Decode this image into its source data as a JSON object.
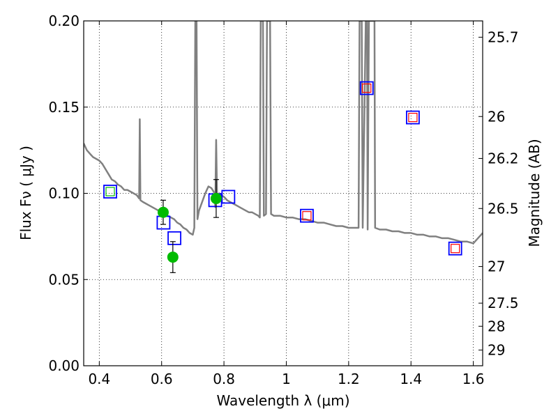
{
  "chart_data": {
    "type": "scatter",
    "xlabel": "Wavelength  λ (μm)",
    "ylabel": "Flux  Fν  ( μJy )",
    "ylabel_right": "Magnitude (AB)",
    "xlim": [
      0.35,
      1.63
    ],
    "ylim": [
      0.0,
      0.2
    ],
    "grid": true,
    "x_ticks": [
      "0.4",
      "0.6",
      "0.8",
      "1",
      "1.2",
      "1.4",
      "1.6"
    ],
    "x_tick_values": [
      0.4,
      0.6,
      0.8,
      1.0,
      1.2,
      1.4,
      1.6
    ],
    "y_ticks": [
      "0.00",
      "0.05",
      "0.10",
      "0.15",
      "0.20"
    ],
    "y_tick_values": [
      0.0,
      0.05,
      0.1,
      0.15,
      0.2
    ],
    "mag_ticks": [
      "25.7",
      "26",
      "26.2",
      "26.5",
      "27",
      "27.5",
      "28",
      "29"
    ],
    "mag_tick_values": [
      25.7,
      26.0,
      26.2,
      26.5,
      27.0,
      27.5,
      28.0,
      29.0
    ],
    "series": [
      {
        "kind": "model",
        "color": "#808080",
        "points": [
          [
            0.35,
            0.129
          ],
          [
            0.355,
            0.127
          ],
          [
            0.36,
            0.125
          ],
          [
            0.365,
            0.124
          ],
          [
            0.37,
            0.123
          ],
          [
            0.375,
            0.122
          ],
          [
            0.38,
            0.121
          ],
          [
            0.39,
            0.12
          ],
          [
            0.4,
            0.119
          ],
          [
            0.41,
            0.117
          ],
          [
            0.42,
            0.114
          ],
          [
            0.43,
            0.111
          ],
          [
            0.44,
            0.108
          ],
          [
            0.45,
            0.107
          ],
          [
            0.46,
            0.105
          ],
          [
            0.47,
            0.104
          ],
          [
            0.48,
            0.102
          ],
          [
            0.49,
            0.102
          ],
          [
            0.5,
            0.101
          ],
          [
            0.51,
            0.1
          ],
          [
            0.52,
            0.099
          ],
          [
            0.528,
            0.097
          ],
          [
            0.53,
            0.143
          ],
          [
            0.532,
            0.096
          ],
          [
            0.54,
            0.095
          ],
          [
            0.55,
            0.094
          ],
          [
            0.56,
            0.093
          ],
          [
            0.57,
            0.092
          ],
          [
            0.58,
            0.091
          ],
          [
            0.59,
            0.09
          ],
          [
            0.6,
            0.089
          ],
          [
            0.61,
            0.088
          ],
          [
            0.62,
            0.087
          ],
          [
            0.63,
            0.086
          ],
          [
            0.64,
            0.085
          ],
          [
            0.65,
            0.083
          ],
          [
            0.66,
            0.082
          ],
          [
            0.67,
            0.08
          ],
          [
            0.68,
            0.079
          ],
          [
            0.69,
            0.077
          ],
          [
            0.7,
            0.076
          ],
          [
            0.705,
            0.08
          ],
          [
            0.708,
            0.2
          ],
          [
            0.712,
            0.2
          ],
          [
            0.715,
            0.085
          ],
          [
            0.72,
            0.09
          ],
          [
            0.73,
            0.095
          ],
          [
            0.74,
            0.1
          ],
          [
            0.75,
            0.104
          ],
          [
            0.76,
            0.103
          ],
          [
            0.77,
            0.1
          ],
          [
            0.772,
            0.092
          ],
          [
            0.775,
            0.131
          ],
          [
            0.778,
            0.095
          ],
          [
            0.785,
            0.1
          ],
          [
            0.79,
            0.099
          ],
          [
            0.8,
            0.098
          ],
          [
            0.81,
            0.096
          ],
          [
            0.82,
            0.095
          ],
          [
            0.83,
            0.094
          ],
          [
            0.84,
            0.093
          ],
          [
            0.85,
            0.092
          ],
          [
            0.86,
            0.091
          ],
          [
            0.87,
            0.09
          ],
          [
            0.88,
            0.089
          ],
          [
            0.89,
            0.089
          ],
          [
            0.9,
            0.088
          ],
          [
            0.91,
            0.087
          ],
          [
            0.915,
            0.086
          ],
          [
            0.918,
            0.2
          ],
          [
            0.925,
            0.2
          ],
          [
            0.928,
            0.087
          ],
          [
            0.935,
            0.088
          ],
          [
            0.938,
            0.2
          ],
          [
            0.944,
            0.2
          ],
          [
            0.948,
            0.2
          ],
          [
            0.951,
            0.088
          ],
          [
            0.96,
            0.087
          ],
          [
            0.98,
            0.087
          ],
          [
            1.0,
            0.086
          ],
          [
            1.02,
            0.086
          ],
          [
            1.04,
            0.085
          ],
          [
            1.06,
            0.085
          ],
          [
            1.08,
            0.084
          ],
          [
            1.1,
            0.083
          ],
          [
            1.12,
            0.083
          ],
          [
            1.14,
            0.082
          ],
          [
            1.16,
            0.081
          ],
          [
            1.18,
            0.081
          ],
          [
            1.2,
            0.08
          ],
          [
            1.22,
            0.08
          ],
          [
            1.232,
            0.08
          ],
          [
            1.235,
            0.2
          ],
          [
            1.242,
            0.2
          ],
          [
            1.245,
            0.08
          ],
          [
            1.255,
            0.2
          ],
          [
            1.259,
            0.2
          ],
          [
            1.261,
            0.079
          ],
          [
            1.265,
            0.2
          ],
          [
            1.27,
            0.2
          ],
          [
            1.278,
            0.2
          ],
          [
            1.283,
            0.2
          ],
          [
            1.285,
            0.08
          ],
          [
            1.3,
            0.079
          ],
          [
            1.32,
            0.079
          ],
          [
            1.34,
            0.078
          ],
          [
            1.36,
            0.078
          ],
          [
            1.38,
            0.077
          ],
          [
            1.4,
            0.077
          ],
          [
            1.42,
            0.076
          ],
          [
            1.44,
            0.076
          ],
          [
            1.46,
            0.075
          ],
          [
            1.48,
            0.075
          ],
          [
            1.5,
            0.074
          ],
          [
            1.52,
            0.074
          ],
          [
            1.54,
            0.073
          ],
          [
            1.56,
            0.072
          ],
          [
            1.58,
            0.072
          ],
          [
            1.6,
            0.071
          ],
          [
            1.61,
            0.073
          ],
          [
            1.62,
            0.075
          ],
          [
            1.63,
            0.077
          ]
        ]
      },
      {
        "kind": "observed",
        "color": "#00bb00",
        "points": [
          {
            "x": 0.605,
            "y": 0.089,
            "err": 0.007
          },
          {
            "x": 0.636,
            "y": 0.063,
            "err": 0.009
          },
          {
            "x": 0.775,
            "y": 0.097,
            "err": 0.011
          }
        ]
      },
      {
        "kind": "model_photometry",
        "color": "#0000ff",
        "points": [
          {
            "x": 0.435,
            "y": 0.101,
            "inner": "#00bb00"
          },
          {
            "x": 0.606,
            "y": 0.083,
            "inner": null
          },
          {
            "x": 0.641,
            "y": 0.074,
            "inner": null
          },
          {
            "x": 0.772,
            "y": 0.096,
            "inner": null
          },
          {
            "x": 0.814,
            "y": 0.098,
            "inner": null
          },
          {
            "x": 1.066,
            "y": 0.087,
            "inner": "#ff0000"
          },
          {
            "x": 1.258,
            "y": 0.161,
            "inner": "#ff0000"
          },
          {
            "x": 1.406,
            "y": 0.144,
            "inner": "#ff0000"
          },
          {
            "x": 1.542,
            "y": 0.068,
            "inner": "#ff0000"
          }
        ]
      }
    ]
  }
}
